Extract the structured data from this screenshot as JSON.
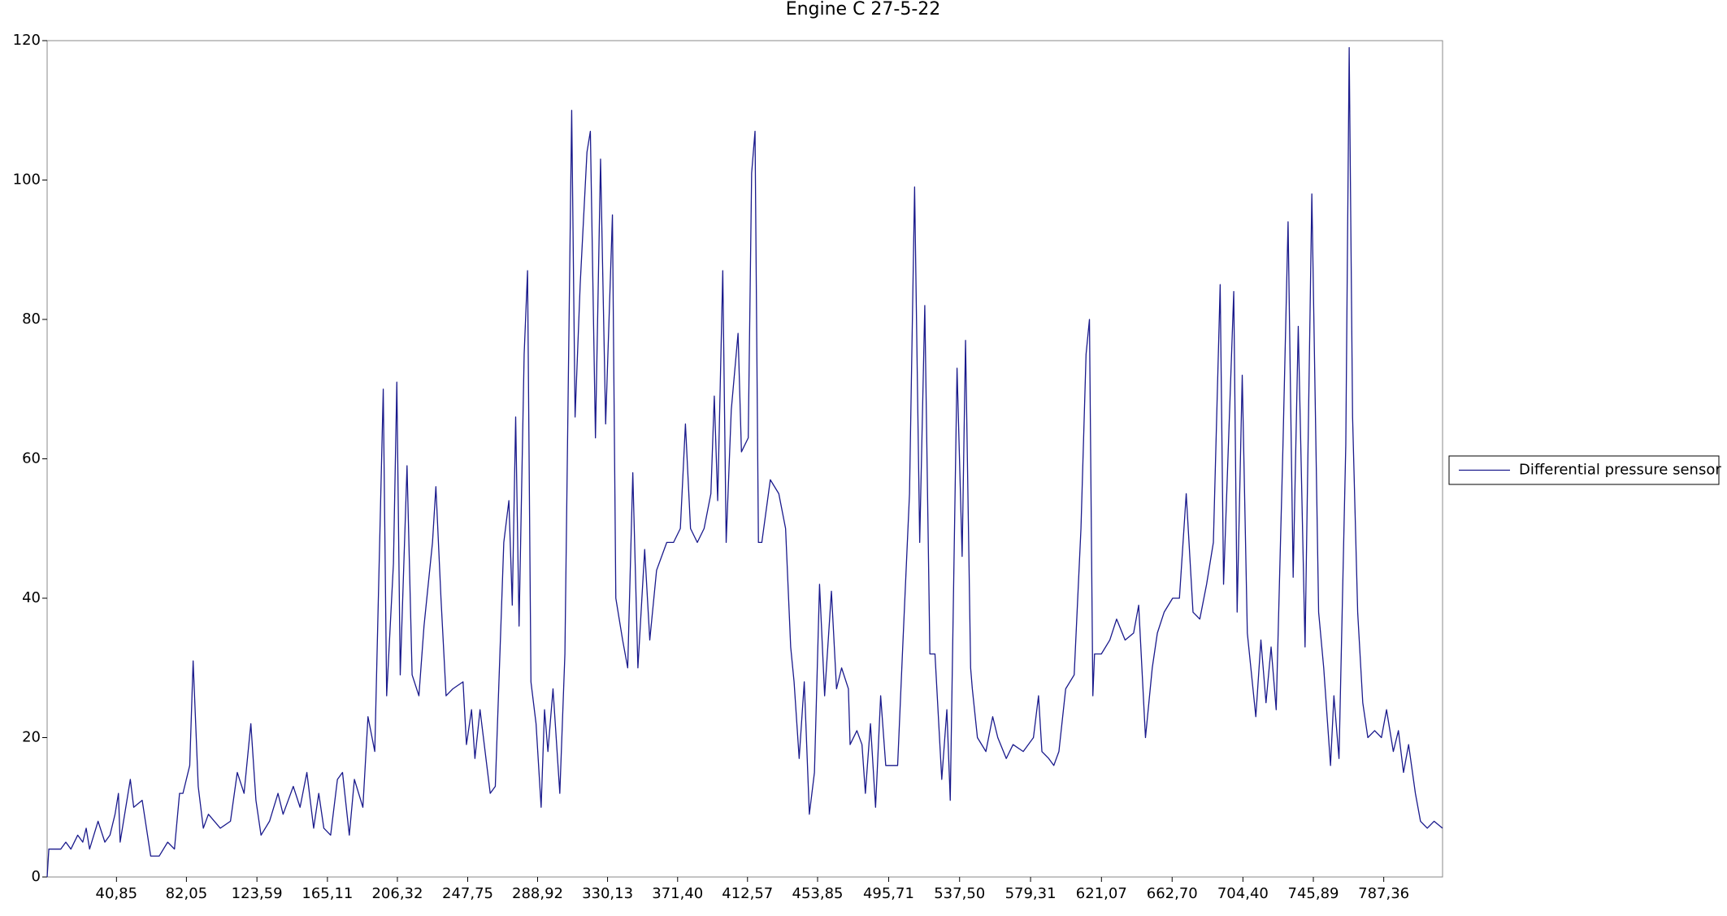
{
  "chart_data": {
    "type": "line",
    "title": "Engine C 27-5-22",
    "x": [
      0,
      1,
      8,
      11,
      14,
      18,
      21,
      23,
      25,
      30,
      34,
      37,
      40,
      42,
      43,
      49,
      51,
      56,
      61,
      66,
      71,
      75,
      78,
      80,
      84,
      86,
      89,
      92,
      95,
      102,
      108,
      112,
      116,
      120,
      123,
      126,
      131,
      136,
      139,
      145,
      149,
      153,
      157,
      160,
      163,
      167,
      171,
      174,
      178,
      181,
      186,
      189,
      193,
      198,
      200,
      204,
      206,
      208,
      212,
      215,
      219,
      222,
      227,
      229,
      232,
      235,
      239,
      245,
      247,
      250,
      252,
      255,
      257,
      261,
      264,
      269,
      272,
      274,
      276,
      278,
      281,
      283,
      285,
      288,
      291,
      293,
      295,
      298,
      302,
      305,
      309,
      311,
      314,
      318,
      320,
      323,
      326,
      329,
      333,
      335,
      339,
      342,
      345,
      348,
      352,
      355,
      359,
      365,
      369,
      373,
      376,
      379,
      383,
      387,
      391,
      393,
      395,
      398,
      400,
      403,
      407,
      409,
      413,
      415,
      417,
      419,
      421,
      426,
      431,
      435,
      438,
      440,
      443,
      446,
      449,
      452,
      455,
      458,
      462,
      465,
      468,
      472,
      473,
      477,
      480,
      482,
      485,
      488,
      491,
      494,
      501,
      504,
      508,
      511,
      514,
      517,
      520,
      523,
      527,
      530,
      532,
      536,
      539,
      541,
      544,
      545,
      548,
      553,
      557,
      560,
      565,
      569,
      575,
      581,
      584,
      586,
      590,
      593,
      596,
      600,
      605,
      609,
      612,
      614,
      616,
      617,
      621,
      626,
      630,
      635,
      640,
      643,
      647,
      651,
      654,
      658,
      663,
      667,
      671,
      675,
      679,
      683,
      687,
      691,
      693,
      699,
      701,
      704,
      707,
      712,
      715,
      718,
      721,
      724,
      728,
      731,
      734,
      737,
      741,
      745,
      749,
      752,
      756,
      758,
      761,
      765,
      767,
      769,
      772,
      775,
      778,
      782,
      786,
      789,
      793,
      796,
      799,
      802,
      806,
      809,
      813,
      817,
      822
    ],
    "series": [
      {
        "name": "Differential pressure sensor",
        "color": "#1a1a8c",
        "values": [
          0,
          4,
          4,
          5,
          4,
          6,
          5,
          7,
          4,
          8,
          5,
          6,
          9,
          12,
          5,
          14,
          10,
          11,
          3,
          3,
          5,
          4,
          12,
          12,
          16,
          31,
          13,
          7,
          9,
          7,
          8,
          15,
          12,
          22,
          11,
          6,
          8,
          12,
          9,
          13,
          10,
          15,
          7,
          12,
          7,
          6,
          14,
          15,
          6,
          14,
          10,
          23,
          18,
          70,
          26,
          45,
          71,
          29,
          59,
          29,
          26,
          36,
          48,
          56,
          40,
          26,
          27,
          28,
          19,
          24,
          17,
          24,
          20,
          12,
          13,
          48,
          54,
          39,
          66,
          36,
          75,
          87,
          28,
          22,
          10,
          24,
          18,
          27,
          12,
          32,
          110,
          66,
          85,
          104,
          107,
          63,
          103,
          65,
          95,
          40,
          34,
          30,
          58,
          30,
          47,
          34,
          44,
          48,
          48,
          50,
          65,
          50,
          48,
          50,
          55,
          69,
          54,
          87,
          48,
          67,
          78,
          61,
          63,
          101,
          107,
          48,
          48,
          57,
          55,
          50,
          33,
          28,
          17,
          28,
          9,
          15,
          42,
          26,
          41,
          27,
          30,
          27,
          19,
          21,
          19,
          12,
          22,
          10,
          26,
          16,
          16,
          33,
          55,
          99,
          48,
          82,
          32,
          32,
          14,
          24,
          11,
          73,
          46,
          77,
          30,
          27,
          20,
          18,
          23,
          20,
          17,
          19,
          18,
          20,
          26,
          18,
          17,
          16,
          18,
          27,
          29,
          50,
          75,
          80,
          26,
          32,
          32,
          34,
          37,
          34,
          35,
          39,
          20,
          30,
          35,
          38,
          40,
          40,
          55,
          38,
          37,
          42,
          48,
          85,
          42,
          84,
          38,
          72,
          35,
          23,
          34,
          25,
          33,
          24,
          62,
          94,
          43,
          79,
          33,
          98,
          38,
          30,
          16,
          26,
          17,
          62,
          119,
          66,
          38,
          25,
          20,
          21,
          20,
          24,
          18,
          21,
          15,
          19,
          12,
          8,
          7,
          8,
          7
        ]
      }
    ],
    "xlim": [
      0,
      822
    ],
    "ylim": [
      0,
      120
    ],
    "xticks": [
      {
        "value": 40.85,
        "label": "40,85"
      },
      {
        "value": 82.05,
        "label": "82,05"
      },
      {
        "value": 123.59,
        "label": "123,59"
      },
      {
        "value": 165.11,
        "label": "165,11"
      },
      {
        "value": 206.32,
        "label": "206,32"
      },
      {
        "value": 247.75,
        "label": "247,75"
      },
      {
        "value": 288.92,
        "label": "288,92"
      },
      {
        "value": 330.13,
        "label": "330,13"
      },
      {
        "value": 371.4,
        "label": "371,40"
      },
      {
        "value": 412.57,
        "label": "412,57"
      },
      {
        "value": 453.85,
        "label": "453,85"
      },
      {
        "value": 495.71,
        "label": "495,71"
      },
      {
        "value": 537.5,
        "label": "537,50"
      },
      {
        "value": 579.31,
        "label": "579,31"
      },
      {
        "value": 621.07,
        "label": "621,07"
      },
      {
        "value": 662.7,
        "label": "662,70"
      },
      {
        "value": 704.4,
        "label": "704,40"
      },
      {
        "value": 745.89,
        "label": "745,89"
      },
      {
        "value": 787.36,
        "label": "787,36"
      }
    ],
    "yticks": [
      0,
      20,
      40,
      60,
      80,
      100,
      120
    ],
    "grid": false,
    "legend": "right"
  }
}
